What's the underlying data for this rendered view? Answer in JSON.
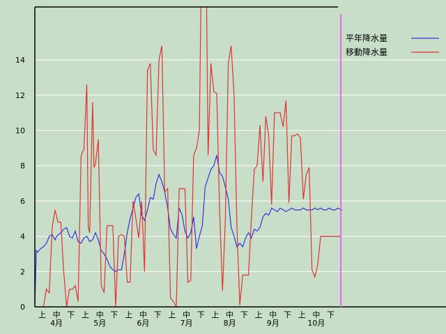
{
  "chart_data": {
    "type": "line",
    "title": "",
    "xlabel": "",
    "ylabel": "",
    "ylim": [
      0,
      17
    ],
    "y_ticks": [
      "0",
      "2",
      "4",
      "6",
      "8",
      "10",
      "12",
      "14"
    ],
    "grid": "horizontal",
    "legend_position": "top-right",
    "background_color": "#c8dec8",
    "x_groups": [
      {
        "month": "4月",
        "subs": [
          "上",
          "中",
          "下"
        ]
      },
      {
        "month": "5月",
        "subs": [
          "上",
          "中",
          "下"
        ]
      },
      {
        "month": "6月",
        "subs": [
          "上",
          "中",
          "下"
        ]
      },
      {
        "month": "7月",
        "subs": [
          "上",
          "中",
          "下"
        ]
      },
      {
        "month": "8月",
        "subs": [
          "上",
          "中",
          "下"
        ]
      },
      {
        "month": "9月",
        "subs": [
          "上",
          "中",
          "下"
        ]
      },
      {
        "month": "10月",
        "subs": [
          "上",
          "中",
          "下"
        ]
      }
    ],
    "days_per_group": 30,
    "marker_day": 212,
    "marker_color": "#e070e0",
    "series": [
      {
        "name": "平年降水量",
        "color": "#3333dd",
        "x": [
          0,
          1,
          2,
          4,
          6,
          8,
          10,
          12,
          14,
          15,
          18,
          20,
          22,
          24,
          26,
          28,
          30,
          32,
          34,
          36,
          38,
          40,
          42,
          44,
          46,
          48,
          50,
          52,
          54,
          56,
          58,
          60,
          62,
          64,
          66,
          68,
          70,
          72,
          74,
          76,
          78,
          80,
          82,
          84,
          86,
          88,
          90,
          92,
          94,
          96,
          98,
          100,
          102,
          104,
          106,
          108,
          110,
          112,
          114,
          116,
          118,
          120,
          122,
          124,
          126,
          128,
          130,
          132,
          134,
          136,
          138,
          140,
          142,
          144,
          146,
          148,
          150,
          152,
          154,
          156,
          158,
          160,
          162,
          164,
          166,
          168,
          170,
          172,
          174,
          176,
          178,
          180,
          182,
          184,
          186,
          188,
          190,
          192,
          194,
          196,
          198,
          200,
          202,
          204,
          206,
          208,
          210,
          212,
          213
        ],
        "values": [
          0,
          3.2,
          3.1,
          3.3,
          3.4,
          3.6,
          4.0,
          4.1,
          3.8,
          4.0,
          4.2,
          4.4,
          4.5,
          4.0,
          3.9,
          4.3,
          3.7,
          3.6,
          3.9,
          4.0,
          3.7,
          3.8,
          4.2,
          3.8,
          3.2,
          3.0,
          2.7,
          2.3,
          2.1,
          2.0,
          2.1,
          2.1,
          3.0,
          4.2,
          5.0,
          5.6,
          6.2,
          6.4,
          5.2,
          4.9,
          5.5,
          6.2,
          6.1,
          7.0,
          7.5,
          7.1,
          6.5,
          5.6,
          4.4,
          4.1,
          3.9,
          5.6,
          5.2,
          4.3,
          3.9,
          4.2,
          5.1,
          3.3,
          4.0,
          4.6,
          6.8,
          7.3,
          7.8,
          8.0,
          8.6,
          7.6,
          7.4,
          6.8,
          6.1,
          4.5,
          4.0,
          3.4,
          3.6,
          3.4,
          3.9,
          4.2,
          3.9,
          4.4,
          4.3,
          4.5,
          5.1,
          5.3,
          5.2,
          5.6,
          5.5,
          5.4,
          5.6,
          5.5,
          5.4,
          5.5,
          5.6,
          5.5,
          5.5,
          5.5,
          5.6,
          5.5,
          5.5,
          5.5,
          5.6,
          5.5,
          5.6,
          5.5,
          5.5,
          5.6,
          5.5,
          5.5,
          5.6,
          5.5,
          5.5
        ]
      },
      {
        "name": "移動降水量",
        "color": "#dd3333",
        "x": [
          0,
          2,
          4,
          6,
          8,
          10,
          12,
          14,
          16,
          18,
          20,
          22,
          24,
          26,
          28,
          30,
          32,
          33,
          34,
          36,
          37,
          38,
          40,
          41,
          42,
          44,
          46,
          48,
          50,
          52,
          54,
          56,
          58,
          60,
          62,
          64,
          66,
          68,
          70,
          72,
          74,
          76,
          78,
          80,
          82,
          84,
          86,
          88,
          90,
          92,
          94,
          96,
          98,
          100,
          102,
          104,
          106,
          108,
          110,
          112,
          114,
          115,
          116,
          118,
          119,
          120,
          122,
          124,
          126,
          128,
          130,
          132,
          134,
          136,
          138,
          140,
          142,
          144,
          146,
          148,
          150,
          152,
          154,
          156,
          158,
          160,
          162,
          164,
          166,
          168,
          170,
          172,
          174,
          176,
          178,
          180,
          182,
          184,
          186,
          188,
          190,
          192,
          194,
          196,
          198,
          200,
          202,
          204,
          206,
          208,
          210,
          212
        ],
        "values": [
          0,
          0,
          0,
          0,
          1.0,
          0.8,
          4.5,
          5.5,
          4.8,
          4.8,
          2.0,
          0,
          1.0,
          1.0,
          1.2,
          0.3,
          8.5,
          8.8,
          8.9,
          12.6,
          4.5,
          4.2,
          11.6,
          7.9,
          8.1,
          9.5,
          1.2,
          0.8,
          4.6,
          4.6,
          4.6,
          0,
          4.0,
          4.1,
          4.0,
          1.4,
          1.4,
          6.0,
          5.0,
          3.9,
          6.0,
          2.0,
          13.4,
          13.8,
          8.9,
          8.6,
          14.0,
          14.8,
          6.5,
          6.7,
          0.5,
          0.3,
          0,
          6.7,
          6.7,
          6.7,
          1.4,
          1.5,
          8.6,
          9.0,
          10.0,
          17.0,
          17.0,
          17.0,
          17.0,
          8.6,
          13.8,
          12.2,
          12.1,
          5.5,
          0.9,
          5.0,
          13.8,
          14.8,
          12.0,
          4.5,
          0.1,
          1.8,
          1.8,
          1.8,
          5.0,
          7.8,
          8.0,
          10.3,
          7.1,
          10.8,
          9.7,
          5.8,
          11.0,
          11.0,
          11.0,
          10.2,
          11.7,
          5.9,
          9.7,
          9.7,
          9.8,
          9.6,
          6.1,
          7.5,
          7.9,
          2.1,
          1.7,
          2.4,
          4.0,
          4.0,
          4.0,
          4.0,
          4.0,
          4.0,
          4.0,
          4.0
        ]
      }
    ]
  }
}
